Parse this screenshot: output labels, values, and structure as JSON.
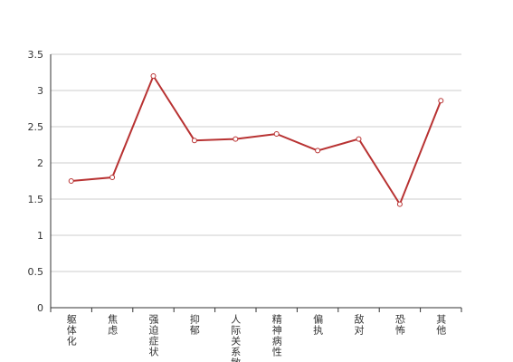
{
  "chart_data": {
    "type": "line",
    "categories": [
      "躯体化",
      "焦虑",
      "强迫症状",
      "抑郁",
      "人际关系敏感",
      "精神病性",
      "偏执",
      "敌对",
      "恐怖",
      "其他"
    ],
    "series": [
      {
        "color": "#b83232",
        "values": [
          1.75,
          1.8,
          3.2,
          2.31,
          2.33,
          2.4,
          2.17,
          2.33,
          1.43,
          2.86
        ]
      }
    ],
    "ylim": [
      0,
      3.5
    ],
    "yticks": [
      0,
      0.5,
      1,
      1.5,
      2,
      2.5,
      3,
      3.5
    ],
    "grid": true
  }
}
